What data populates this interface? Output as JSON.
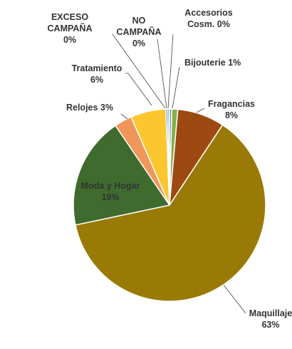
{
  "chart_data": {
    "type": "pie",
    "slices": [
      {
        "category": "Accesorios Cosm.",
        "label_lines": [
          "Accesorios",
          "Cosm. 0%"
        ],
        "value": 0.4,
        "percent_label": "0%",
        "color": "#8c8c8c"
      },
      {
        "category": "Bijouterie",
        "label_lines": [
          "Bijouterie 1%"
        ],
        "value": 1,
        "percent_label": "1%",
        "color": "#7fb24a"
      },
      {
        "category": "Fragancias",
        "label_lines": [
          "Fragancias",
          "8%"
        ],
        "value": 8,
        "percent_label": "8%",
        "color": "#9c4a12"
      },
      {
        "category": "Maquillaje",
        "label_lines": [
          "Maquillaje",
          "63%"
        ],
        "value": 63,
        "percent_label": "63%",
        "color": "#9a7a06"
      },
      {
        "category": "Moda y Hogar",
        "label_lines": [
          "Moda y Hogar",
          "19%"
        ],
        "value": 19,
        "percent_label": "19%",
        "color": "#3f6b2e"
      },
      {
        "category": "Relojes",
        "label_lines": [
          "Relojes 3%"
        ],
        "value": 3,
        "percent_label": "3%",
        "color": "#f0965a"
      },
      {
        "category": "Tratamiento",
        "label_lines": [
          "Tratamiento",
          "6%"
        ],
        "value": 6,
        "percent_label": "6%",
        "color": "#fcc72e"
      },
      {
        "category": "EXCESO CAMPAÑA",
        "label_lines": [
          "EXCESO",
          "CAMPAÑA",
          "0%"
        ],
        "value": 0.3,
        "percent_label": "0%",
        "color": "#2e75b6"
      },
      {
        "category": "NO CAMPAÑA",
        "label_lines": [
          "NO",
          "CAMPAÑA",
          "0%"
        ],
        "value": 0.3,
        "percent_label": "0%",
        "color": "#5a9bd5"
      }
    ],
    "start_angle_deg": 0,
    "direction": "clockwise",
    "labels_outside": true
  }
}
